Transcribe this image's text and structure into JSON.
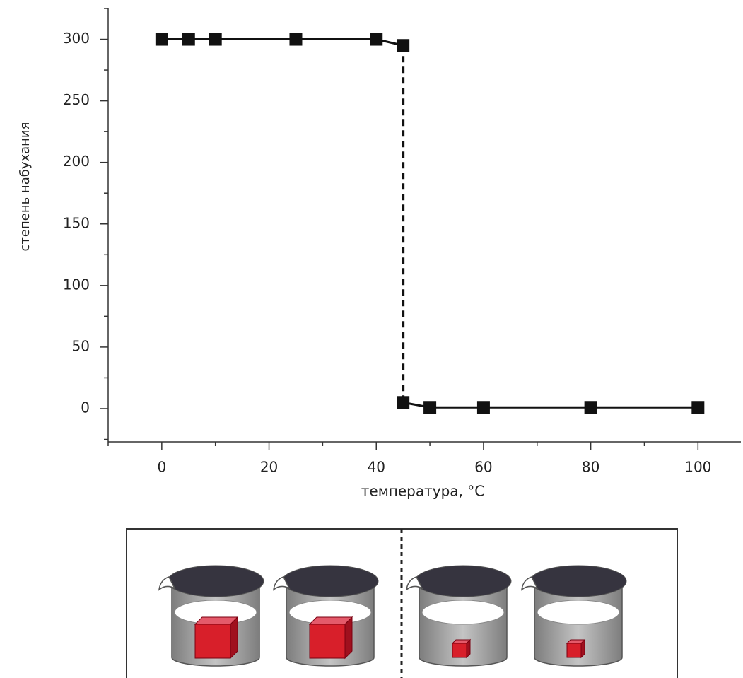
{
  "chart_data": {
    "type": "line",
    "xlabel": "температура, °C",
    "ylabel": "степень набухания",
    "series": [
      {
        "color": "#111111",
        "x": [
          0,
          5,
          10,
          25,
          40,
          45
        ],
        "values": [
          300,
          300,
          300,
          300,
          300,
          295
        ]
      },
      {
        "color": "#111111",
        "x": [
          45,
          50,
          60,
          80,
          100
        ],
        "values": [
          5,
          1,
          1,
          1,
          1
        ]
      }
    ],
    "xlim": [
      -10,
      108
    ],
    "xticks": [
      0,
      20,
      40,
      60,
      80,
      100
    ],
    "xminorticks": [
      -10,
      10,
      30,
      50,
      70,
      90
    ],
    "ylim": [
      -27,
      325
    ],
    "yticks": [
      0,
      50,
      100,
      150,
      200,
      250,
      300
    ],
    "yminorticks": [
      -25,
      25,
      75,
      125,
      175,
      225,
      275,
      325
    ],
    "grid": false,
    "marker": "square"
  }
}
